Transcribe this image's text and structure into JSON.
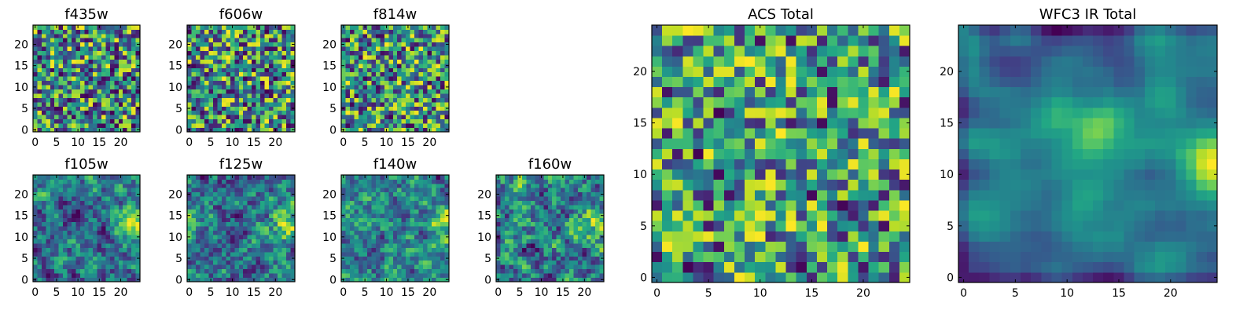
{
  "chart_data": [
    {
      "type": "heatmap",
      "title": "f435w",
      "xticks": [
        0,
        5,
        10,
        15,
        20
      ],
      "yticks": [
        0,
        5,
        10,
        15,
        20
      ],
      "xlim": [
        -0.5,
        24.5
      ],
      "ylim": [
        -0.5,
        24.5
      ],
      "colormap": "viridis",
      "grid": false,
      "texture": "grainy",
      "seed": 11
    },
    {
      "type": "heatmap",
      "title": "f606w",
      "xticks": [
        0,
        5,
        10,
        15,
        20
      ],
      "yticks": [
        0,
        5,
        10,
        15,
        20
      ],
      "xlim": [
        -0.5,
        24.5
      ],
      "ylim": [
        -0.5,
        24.5
      ],
      "colormap": "viridis",
      "grid": false,
      "texture": "grainy",
      "seed": 23
    },
    {
      "type": "heatmap",
      "title": "f814w",
      "xticks": [
        0,
        5,
        10,
        15,
        20
      ],
      "yticks": [
        0,
        5,
        10,
        15,
        20
      ],
      "xlim": [
        -0.5,
        24.5
      ],
      "ylim": [
        -0.5,
        24.5
      ],
      "colormap": "viridis",
      "grid": false,
      "texture": "grainy",
      "seed": 37
    },
    {
      "type": "heatmap",
      "title": "f105w",
      "xticks": [
        0,
        5,
        10,
        15,
        20
      ],
      "yticks": [
        0,
        5,
        10,
        15,
        20
      ],
      "xlim": [
        -0.5,
        24.5
      ],
      "ylim": [
        -0.5,
        24.5
      ],
      "colormap": "viridis",
      "grid": false,
      "texture": "smooth",
      "seed": 41
    },
    {
      "type": "heatmap",
      "title": "f125w",
      "xticks": [
        0,
        5,
        10,
        15,
        20
      ],
      "yticks": [
        0,
        5,
        10,
        15,
        20
      ],
      "xlim": [
        -0.5,
        24.5
      ],
      "ylim": [
        -0.5,
        24.5
      ],
      "colormap": "viridis",
      "grid": false,
      "texture": "smooth",
      "seed": 53
    },
    {
      "type": "heatmap",
      "title": "f140w",
      "xticks": [
        0,
        5,
        10,
        15,
        20
      ],
      "yticks": [
        0,
        5,
        10,
        15,
        20
      ],
      "xlim": [
        -0.5,
        24.5
      ],
      "ylim": [
        -0.5,
        24.5
      ],
      "colormap": "viridis",
      "grid": false,
      "texture": "smooth",
      "seed": 67
    },
    {
      "type": "heatmap",
      "title": "f160w",
      "xticks": [
        0,
        5,
        10,
        15,
        20
      ],
      "yticks": [
        0,
        5,
        10,
        15,
        20
      ],
      "xlim": [
        -0.5,
        24.5
      ],
      "ylim": [
        -0.5,
        24.5
      ],
      "colormap": "viridis",
      "grid": false,
      "texture": "smooth",
      "seed": 79
    },
    {
      "type": "heatmap",
      "title": "ACS Total",
      "xticks": [
        0,
        5,
        10,
        15,
        20
      ],
      "yticks": [
        0,
        5,
        10,
        15,
        20
      ],
      "xlim": [
        -0.5,
        24.5
      ],
      "ylim": [
        -0.5,
        24.5
      ],
      "colormap": "viridis",
      "grid": false,
      "texture": "bright",
      "seed": 97
    },
    {
      "type": "heatmap",
      "title": "WFC3 IR Total",
      "xticks": [
        0,
        5,
        10,
        15,
        20
      ],
      "yticks": [
        0,
        5,
        10,
        15,
        20
      ],
      "xlim": [
        -0.5,
        24.5
      ],
      "ylim": [
        -0.5,
        24.5
      ],
      "colormap": "viridis",
      "grid": false,
      "texture": "blob",
      "seed": 113
    }
  ]
}
